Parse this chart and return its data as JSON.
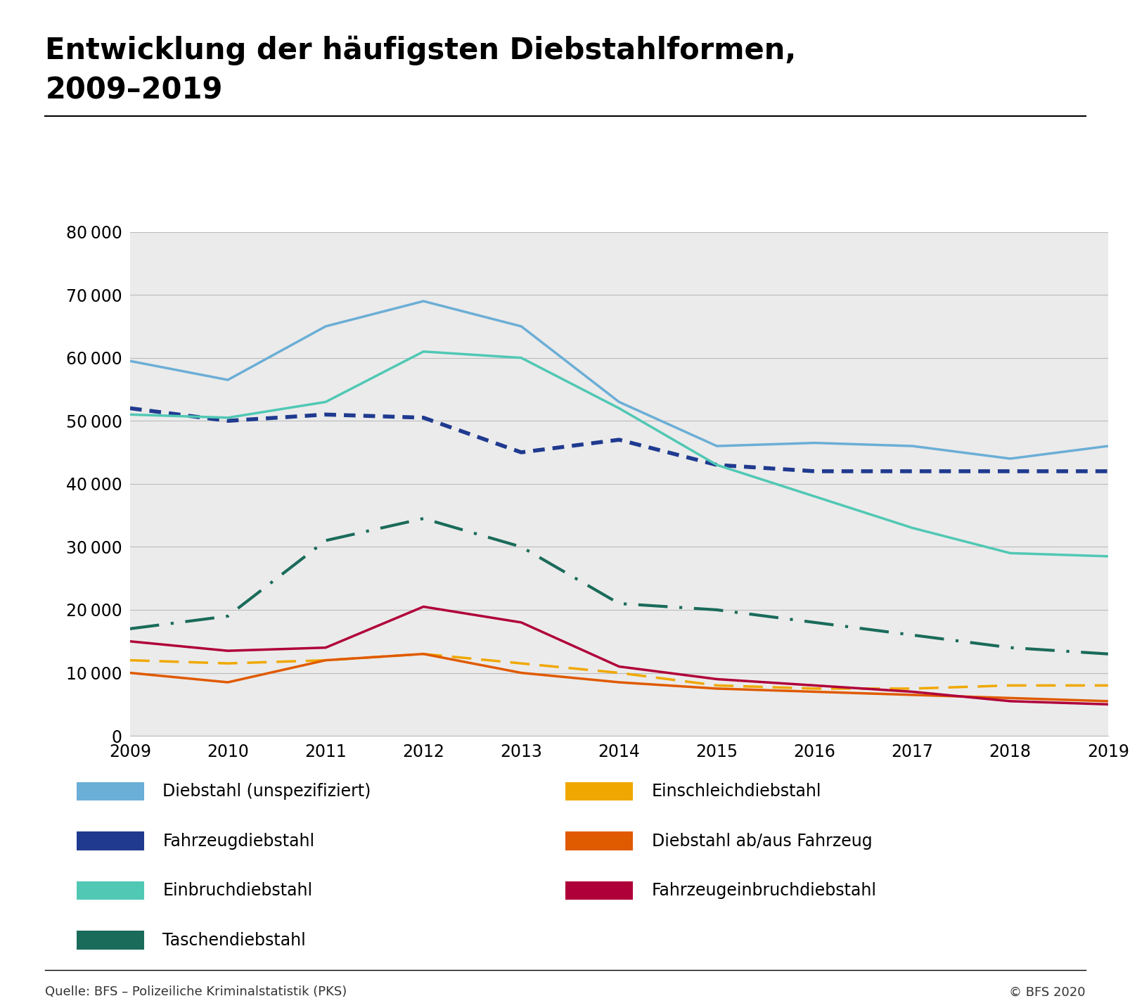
{
  "title_line1": "Entwicklung der häufigsten Diebstahlformen,",
  "title_line2": "2009–2019",
  "years": [
    2009,
    2010,
    2011,
    2012,
    2013,
    2014,
    2015,
    2016,
    2017,
    2018,
    2019
  ],
  "series": [
    {
      "label": "Diebstahl (unspezifiziert)",
      "values": [
        59500,
        56500,
        65000,
        69000,
        65000,
        53000,
        46000,
        46500,
        46000,
        44000,
        46000
      ],
      "color": "#6baed6",
      "linestyle": "solid",
      "linewidth": 2.5,
      "legend_col": 0
    },
    {
      "label": "Fahrzeugdiebstahl",
      "values": [
        52000,
        50000,
        51000,
        50500,
        45000,
        47000,
        43000,
        42000,
        42000,
        42000,
        42000
      ],
      "color": "#1f3a8f",
      "linestyle": "dotted",
      "linewidth": 4.0,
      "legend_col": 0
    },
    {
      "label": "Einbruchdiebstahl",
      "values": [
        51000,
        50500,
        53000,
        61000,
        60000,
        52000,
        43000,
        38000,
        33000,
        29000,
        28500
      ],
      "color": "#50c8b4",
      "linestyle": "solid",
      "linewidth": 2.5,
      "legend_col": 0
    },
    {
      "label": "Taschendiebstahl",
      "values": [
        17000,
        19000,
        31000,
        34500,
        30000,
        21000,
        20000,
        18000,
        16000,
        14000,
        13000
      ],
      "color": "#1a6b5a",
      "linestyle": "dashdot_long",
      "linewidth": 3.0,
      "legend_col": 0
    },
    {
      "label": "Einschleichdiebstahl",
      "values": [
        12000,
        11500,
        12000,
        13000,
        11500,
        10000,
        8000,
        7500,
        7500,
        8000,
        8000
      ],
      "color": "#f0a800",
      "linestyle": "dashed",
      "linewidth": 2.5,
      "legend_col": 1
    },
    {
      "label": "Diebstahl ab/aus Fahrzeug",
      "values": [
        10000,
        8500,
        12000,
        13000,
        10000,
        8500,
        7500,
        7000,
        6500,
        6000,
        5500
      ],
      "color": "#e05a00",
      "linestyle": "solid",
      "linewidth": 2.5,
      "legend_col": 1
    },
    {
      "label": "Fahrzeugeinbruchdiebstahl",
      "values": [
        15000,
        13500,
        14000,
        20500,
        18000,
        11000,
        9000,
        8000,
        7000,
        5500,
        5000
      ],
      "color": "#b0003a",
      "linestyle": "solid",
      "linewidth": 2.5,
      "legend_col": 1
    }
  ],
  "ylim": [
    0,
    80000
  ],
  "yticks": [
    0,
    10000,
    20000,
    30000,
    40000,
    50000,
    60000,
    70000,
    80000
  ],
  "plot_bg_color": "#ebebeb",
  "grid_color": "#bbbbbb",
  "footer_left": "Quelle: BFS – Polizeiliche Kriminalstatistik (PKS)",
  "footer_right": "© BFS 2020",
  "title_fontsize": 30,
  "tick_fontsize": 17,
  "legend_fontsize": 17,
  "footer_fontsize": 13
}
